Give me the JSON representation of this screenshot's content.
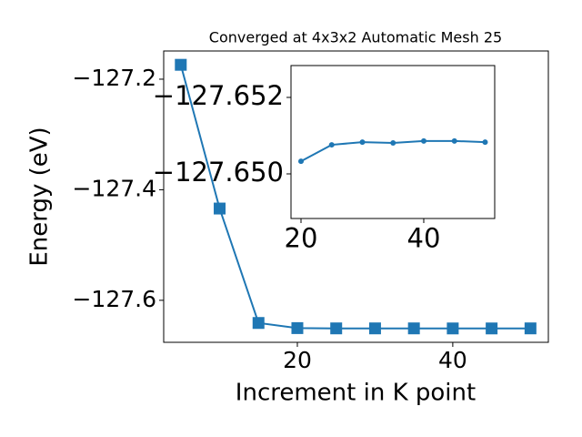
{
  "chart_data": [
    {
      "type": "line",
      "title": "Converged at 4x3x2 Automatic Mesh 25",
      "x_label": "Increment in K point",
      "y_label": "Energy (eV)",
      "marker": "square",
      "color": "#1f77b4",
      "x": [
        5,
        10,
        15,
        20,
        25,
        30,
        35,
        40,
        45,
        50
      ],
      "values": [
        -127.174,
        -127.434,
        -127.641,
        -127.6503,
        -127.6508,
        -127.6508,
        -127.6508,
        -127.6509,
        -127.6509,
        -127.6508
      ],
      "xlim": [
        2.8,
        52.3
      ],
      "xticks": [
        20,
        40
      ],
      "ylim": [
        -127.676,
        -127.149
      ],
      "yticks": [
        {
          "value": -127.6,
          "label": "−127.6"
        },
        {
          "value": -127.4,
          "label": "−127.4"
        },
        {
          "value": -127.2,
          "label": "−127.2"
        }
      ]
    },
    {
      "type": "line",
      "marker": "circle",
      "color": "#1f77b4",
      "x": [
        20,
        25,
        30,
        35,
        40,
        45,
        50
      ],
      "values": [
        -127.65033,
        -127.65076,
        -127.65083,
        -127.65081,
        -127.65086,
        -127.65086,
        -127.65083
      ],
      "xlim": [
        18.37,
        51.56
      ],
      "xticks": [
        20,
        40
      ],
      "ylim": [
        -127.648833,
        -127.652833
      ],
      "yticks": [
        {
          "value": -127.65,
          "label": "−127.650"
        },
        {
          "value": -127.652,
          "label": "−127.652"
        }
      ]
    }
  ]
}
